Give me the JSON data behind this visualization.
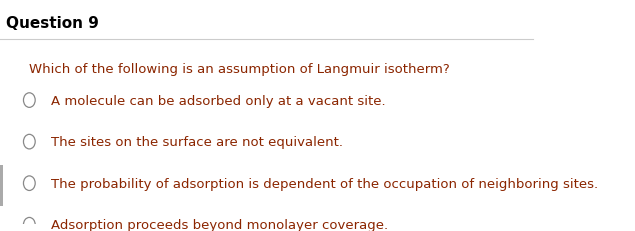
{
  "title": "Question 9",
  "question": "Which of the following is an assumption of Langmuir isotherm?",
  "options": [
    "A molecule can be adsorbed only at a vacant site.",
    "The sites on the surface are not equivalent.",
    "The probability of adsorption is dependent of the occupation of neighboring sites.",
    "Adsorption proceeds beyond monolayer coverage."
  ],
  "title_color": "#000000",
  "question_color": "#8B2500",
  "option_color": "#8B2500",
  "circle_color": "#888888",
  "bg_color": "#ffffff",
  "separator_color": "#cccccc",
  "title_fontsize": 11,
  "question_fontsize": 9.5,
  "option_fontsize": 9.5
}
